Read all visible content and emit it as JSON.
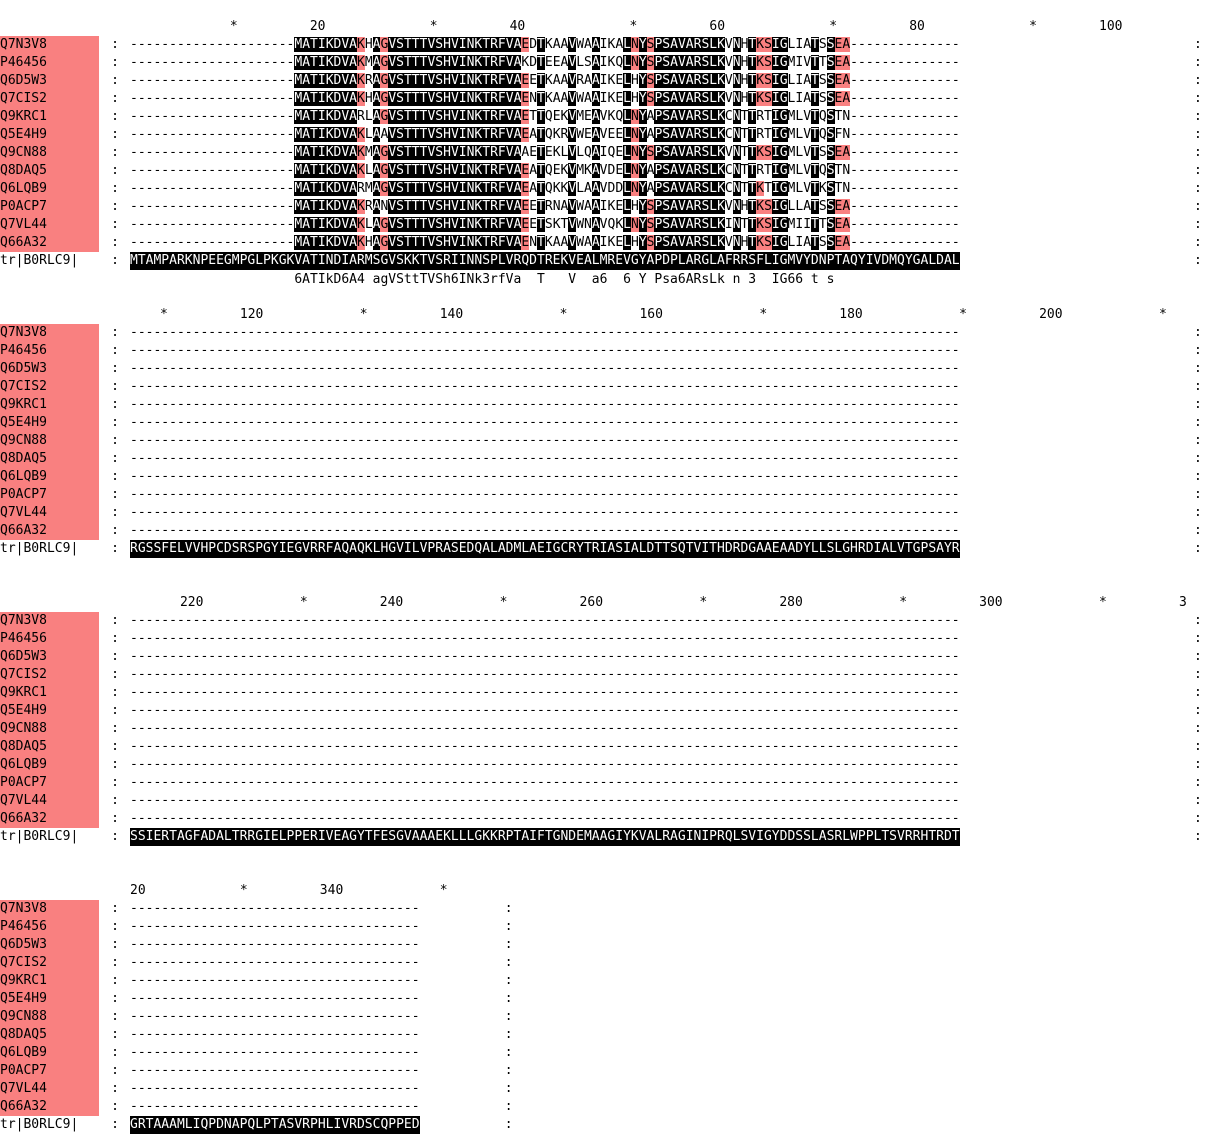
{
  "labels": [
    "Q7N3V8",
    "P46456",
    "Q6D5W3",
    "Q7CIS2",
    "Q9KRC1",
    "Q5E4H9",
    "Q9CN88",
    "Q8DAQ5",
    "Q6LQB9",
    "P0ACP7",
    "Q7VL44",
    "Q66A32"
  ],
  "query_label": "tr|B0RLC9|",
  "separator": ":",
  "block1": {
    "ruler": [
      {
        "t": "*",
        "col": 10
      },
      {
        "t": "20",
        "col": 18
      },
      {
        "t": "*",
        "col": 30
      },
      {
        "t": "40",
        "col": 38
      },
      {
        "t": "*",
        "col": 50
      },
      {
        "t": "60",
        "col": 58
      },
      {
        "t": "*",
        "col": 70
      },
      {
        "t": "80",
        "col": 78
      },
      {
        "t": "*",
        "col": 90
      },
      {
        "t": "100",
        "col": 97
      }
    ],
    "seqs": [
      "---------------------MATIKDVAKHAGVSTTTVSHVINKTRFVAEDTKAAVWAAIKALNYSPSAVARSLKVNHTKSIGLIATSSEA-----------------",
      "---------------------MATIKDVAKMAGVSTTTVSHVINKTRFVAKDTEEAVLSAIKQLNYSPSAVARSLKVNHTKSIGMIVTTSEA-----------------",
      "---------------------MATIKDVAKRAGVSTTTVSHVINKTRFVAEETKAAVRAAIKELHYSPSAVARSLKVNHTKSIGLIATSSEA-----------------",
      "---------------------MATIKDVAKHAGVSTTTVSHVINKTRFVAENTKAAVWAAIKELHYSPSAVARSLKVNHTKSIGLIATSSEA-----------------",
      "---------------------MATIKDVARLAGVSTTTVSHVINKTRFVAETTQEKVMEAVKQLNYAPSAVARSLKCNTTRTIGMLVTQSTN-----------------",
      "---------------------MATIKDVAKLAAVSTTTVSHVINKTRFVAEATQKRVWEAVEELNYAPSAVARSLKCNTTRTIGMLVTQSFN-----------------",
      "---------------------MATIKDVAKMAGVSTTTVSHVINKTRFVAAETEKLVLQAIQELNYSPSAVARSLKVNTTKSIGMLVTSSEA-----------------",
      "---------------------MATIKDVAKLAGVSTTTVSHVINKTRFVAEATQEKVMKAVDELNYAPSAVARSLKCNTTRTIGMLVTQSTN-----------------",
      "---------------------MATIKDVARMAGVSTTTVSHVINKTRFVAEATQKKVLAAVDDLNYAPSAVARSLKCNTTKTIGMLVTKSTN-----------------",
      "---------------------MATIKDVAKRANVSTTTVSHVINKTRFVAEETRNAVWAAIKELHYSPSAVARSLKVNHTKSIGLLATSSEA-----------------",
      "---------------------MATIKDVAKLAGVSTTTVSHVINKTRFVAEETSKTVWNAVQKLNYSPSAVARSLKINTTKSIGMIITTSEA-----------------",
      "---------------------MATIKDVAKHAGVSTTTVSHVINKTRFVAENTKAAVWAAIKELHYSPSAVARSLKVNHTKSIGLIATSSEA-----------------"
    ],
    "query": "MTAMPARKNPEEGMPGLPKGKVATINDIARMSGVSKKTVSRIINNSPLVRQDTREKVEALMREVGYAPDPLARGLAFRRSFLIGMVYDNPTAQYIVDMQYGALDAL",
    "consensus": "                     6ATIkD6A4 agVSttTVSh6INk3rfVa  T   V  a6  6 Y Psa6ARsLk n 3  IG66 t s"
  },
  "block2": {
    "ruler": [
      {
        "t": "*",
        "col": 3
      },
      {
        "t": "120",
        "col": 11
      },
      {
        "t": "*",
        "col": 23
      },
      {
        "t": "140",
        "col": 31
      },
      {
        "t": "*",
        "col": 43
      },
      {
        "t": "160",
        "col": 51
      },
      {
        "t": "*",
        "col": 63
      },
      {
        "t": "180",
        "col": 71
      },
      {
        "t": "*",
        "col": 83
      },
      {
        "t": "200",
        "col": 91
      },
      {
        "t": "*",
        "col": 103
      }
    ],
    "query": "RGSSFELVVHPCDSRSPGYIEGVRRFAQAQKLHGVILVPRASEDQALADMLAEIGCRYTRIASIALDTTSQTVITHDRDGAAEAADYLLSLGHRDIALVTGPSAYR"
  },
  "block3": {
    "ruler": [
      {
        "t": "220",
        "col": 5
      },
      {
        "t": "*",
        "col": 17
      },
      {
        "t": "240",
        "col": 25
      },
      {
        "t": "*",
        "col": 37
      },
      {
        "t": "260",
        "col": 45
      },
      {
        "t": "*",
        "col": 57
      },
      {
        "t": "280",
        "col": 65
      },
      {
        "t": "*",
        "col": 77
      },
      {
        "t": "300",
        "col": 85
      },
      {
        "t": "*",
        "col": 97
      },
      {
        "t": "3",
        "col": 105
      }
    ],
    "query": "SSIERTAGFADALTRRGIELPPERIVEAGYTFESGVAAAEKLLLGKKRPTAIFTGNDEMAAGIYKVALRAGINIPRQLSVIGYDDSSLASRLWPPLTSVRRHTRDT"
  },
  "block4": {
    "ruler": [
      {
        "t": "20",
        "col": 0
      },
      {
        "t": "*",
        "col": 11
      },
      {
        "t": "340",
        "col": 19
      },
      {
        "t": "*",
        "col": 31
      }
    ],
    "query": "GRTAAAMLIQPDNAPQLPTASVRPHLIVRDSCQPPED"
  },
  "colors": {
    "conserved_bg": "#000000",
    "similar_bg": "#f98080",
    "label_bg": "#f98080"
  }
}
